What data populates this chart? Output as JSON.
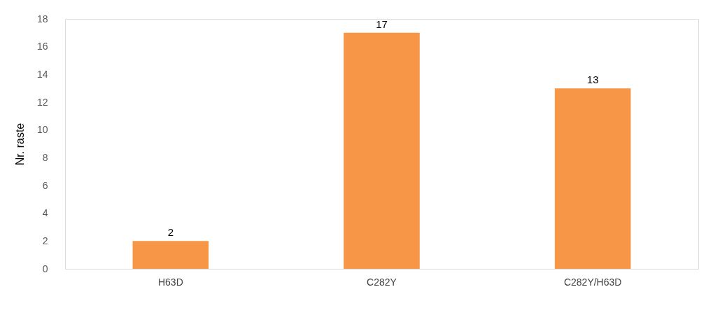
{
  "chart_data": {
    "type": "bar",
    "ylabel": "Nr. raste",
    "categories": [
      "H63D",
      "C282Y",
      "C282Y/H63D"
    ],
    "values": [
      2,
      17,
      13
    ],
    "color": "#f79646",
    "ylim": [
      0,
      18
    ],
    "yticks": [
      0,
      2,
      4,
      6,
      8,
      10,
      12,
      14,
      16,
      18
    ],
    "grid": false,
    "data_labels": true
  }
}
